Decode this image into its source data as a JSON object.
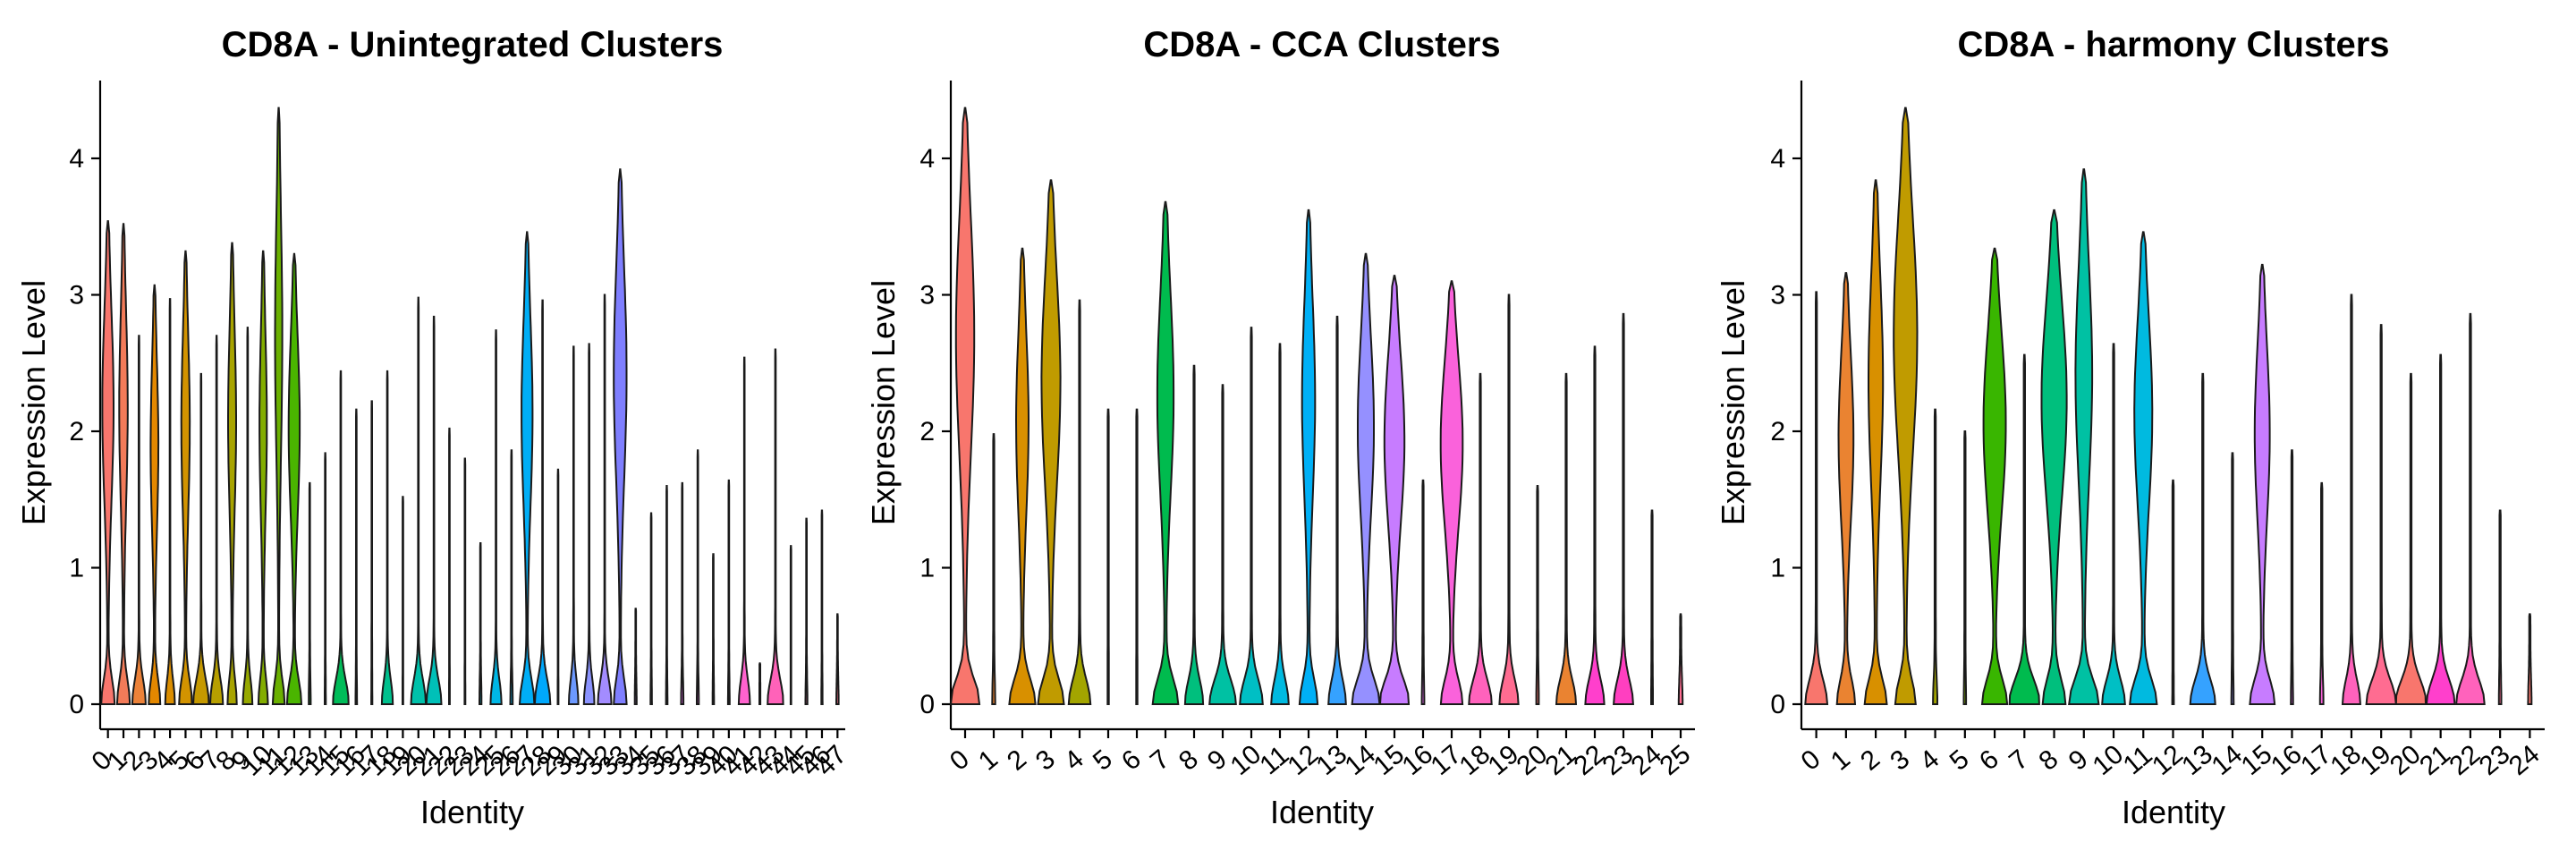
{
  "chart_data": [
    {
      "type": "violin",
      "title": "CD8A - Unintegrated Clusters",
      "xlabel": "Identity",
      "ylabel": "Expression Level",
      "ylim": [
        -0.2,
        4.55
      ],
      "yticks": [
        0,
        1,
        2,
        3,
        4
      ],
      "categories": [
        "0",
        "1",
        "2",
        "3",
        "4",
        "5",
        "6",
        "7",
        "8",
        "9",
        "10",
        "11",
        "12",
        "13",
        "14",
        "15",
        "16",
        "17",
        "18",
        "19",
        "20",
        "21",
        "22",
        "23",
        "24",
        "25",
        "26",
        "27",
        "28",
        "29",
        "30",
        "31",
        "32",
        "33",
        "34",
        "35",
        "36",
        "37",
        "38",
        "39",
        "40",
        "41",
        "42",
        "43",
        "44",
        "45",
        "46",
        "47"
      ],
      "max_values": [
        3.52,
        3.5,
        2.68,
        3.05,
        2.95,
        3.3,
        2.4,
        2.68,
        3.36,
        2.74,
        3.3,
        4.35,
        3.28,
        1.6,
        1.82,
        2.42,
        2.14,
        2.2,
        2.42,
        1.5,
        2.96,
        2.82,
        2.0,
        1.78,
        1.16,
        2.72,
        1.84,
        3.44,
        2.94,
        1.7,
        2.6,
        2.62,
        2.98,
        3.9,
        0.68,
        1.38,
        1.58,
        1.6,
        1.84,
        1.08,
        1.62,
        2.52,
        0.28,
        2.58,
        1.14,
        1.34,
        1.4,
        0.64
      ],
      "colors": [
        "#F8766D",
        "#F37B59",
        "#EC8239",
        "#E48800",
        "#DB8E00",
        "#D29300",
        "#C59900",
        "#B79F00",
        "#A8A400",
        "#97A900",
        "#83AD00",
        "#6BB100",
        "#4AB500",
        "#00B81F",
        "#00BA42",
        "#00BC59",
        "#00BE6C",
        "#00BF7D",
        "#00C08D",
        "#00C19C",
        "#00C1AA",
        "#00C0B8",
        "#00BFC4",
        "#00BDD0",
        "#00BADB",
        "#00B7E5",
        "#00B3EE",
        "#00AEF6",
        "#00A8FC",
        "#3BA1FF",
        "#6C99FF",
        "#8B93FF",
        "#A38CFF",
        "#7F7FFF",
        "#C77CFF",
        "#D575FE",
        "#E170F8",
        "#EB6AF2",
        "#F365EA",
        "#F961E2",
        "#FD61D8",
        "#FF62CE",
        "#FF63C4",
        "#FF62B9",
        "#FF66AE",
        "#FF69A2",
        "#FD6D96",
        "#FB7189"
      ]
    },
    {
      "type": "violin",
      "title": "CD8A - CCA Clusters",
      "xlabel": "Identity",
      "ylabel": "Expression Level",
      "ylim": [
        -0.2,
        4.55
      ],
      "yticks": [
        0,
        1,
        2,
        3,
        4
      ],
      "categories": [
        "0",
        "1",
        "2",
        "3",
        "4",
        "5",
        "6",
        "7",
        "8",
        "9",
        "10",
        "11",
        "12",
        "13",
        "14",
        "15",
        "16",
        "17",
        "18",
        "19",
        "20",
        "21",
        "22",
        "23",
        "24",
        "25"
      ],
      "max_values": [
        4.35,
        1.96,
        3.32,
        3.82,
        2.94,
        2.14,
        2.14,
        3.66,
        2.46,
        2.32,
        2.74,
        2.62,
        3.6,
        2.82,
        3.28,
        3.12,
        1.62,
        3.08,
        2.4,
        2.98,
        1.58,
        2.4,
        2.6,
        2.84,
        1.4,
        0.64
      ],
      "colors": [
        "#F8766D",
        "#EA8331",
        "#D89000",
        "#C09B00",
        "#A3A500",
        "#7CAE00",
        "#39B600",
        "#00BB4E",
        "#00BF7D",
        "#00C1A3",
        "#00BFC4",
        "#00BAE0",
        "#00B0F6",
        "#35A2FF",
        "#9590FF",
        "#C77CFF",
        "#E76BF3",
        "#FA62DB",
        "#FF62BC",
        "#FF6C91",
        "#F8766D",
        "#EA8331",
        "#FF3FCC",
        "#FF3FC0",
        "#FF62BC",
        "#FF6C91"
      ]
    },
    {
      "type": "violin",
      "title": "CD8A - harmony Clusters",
      "xlabel": "Identity",
      "ylabel": "Expression Level",
      "ylim": [
        -0.2,
        4.55
      ],
      "yticks": [
        0,
        1,
        2,
        3,
        4
      ],
      "categories": [
        "0",
        "1",
        "2",
        "3",
        "4",
        "5",
        "6",
        "7",
        "8",
        "9",
        "10",
        "11",
        "12",
        "13",
        "14",
        "15",
        "16",
        "17",
        "18",
        "19",
        "20",
        "21",
        "22",
        "23",
        "24"
      ],
      "max_values": [
        3.0,
        3.14,
        3.82,
        4.35,
        2.14,
        1.98,
        3.32,
        2.54,
        3.6,
        3.9,
        2.62,
        3.44,
        1.62,
        2.4,
        1.82,
        3.2,
        1.84,
        1.6,
        2.98,
        2.76,
        2.4,
        2.54,
        2.84,
        1.4,
        0.64
      ],
      "colors": [
        "#F8766D",
        "#EA8331",
        "#D89000",
        "#C09B00",
        "#A3A500",
        "#7CAE00",
        "#39B600",
        "#00BB4E",
        "#00BF7D",
        "#00C1A3",
        "#00BFC4",
        "#00BAE0",
        "#00B0F6",
        "#35A2FF",
        "#9590FF",
        "#C77CFF",
        "#E76BF3",
        "#FA62DB",
        "#FF62BC",
        "#FF6C91",
        "#F8766D",
        "#FF3FCC",
        "#FF62BC",
        "#FF6C91",
        "#F8766D"
      ]
    }
  ]
}
